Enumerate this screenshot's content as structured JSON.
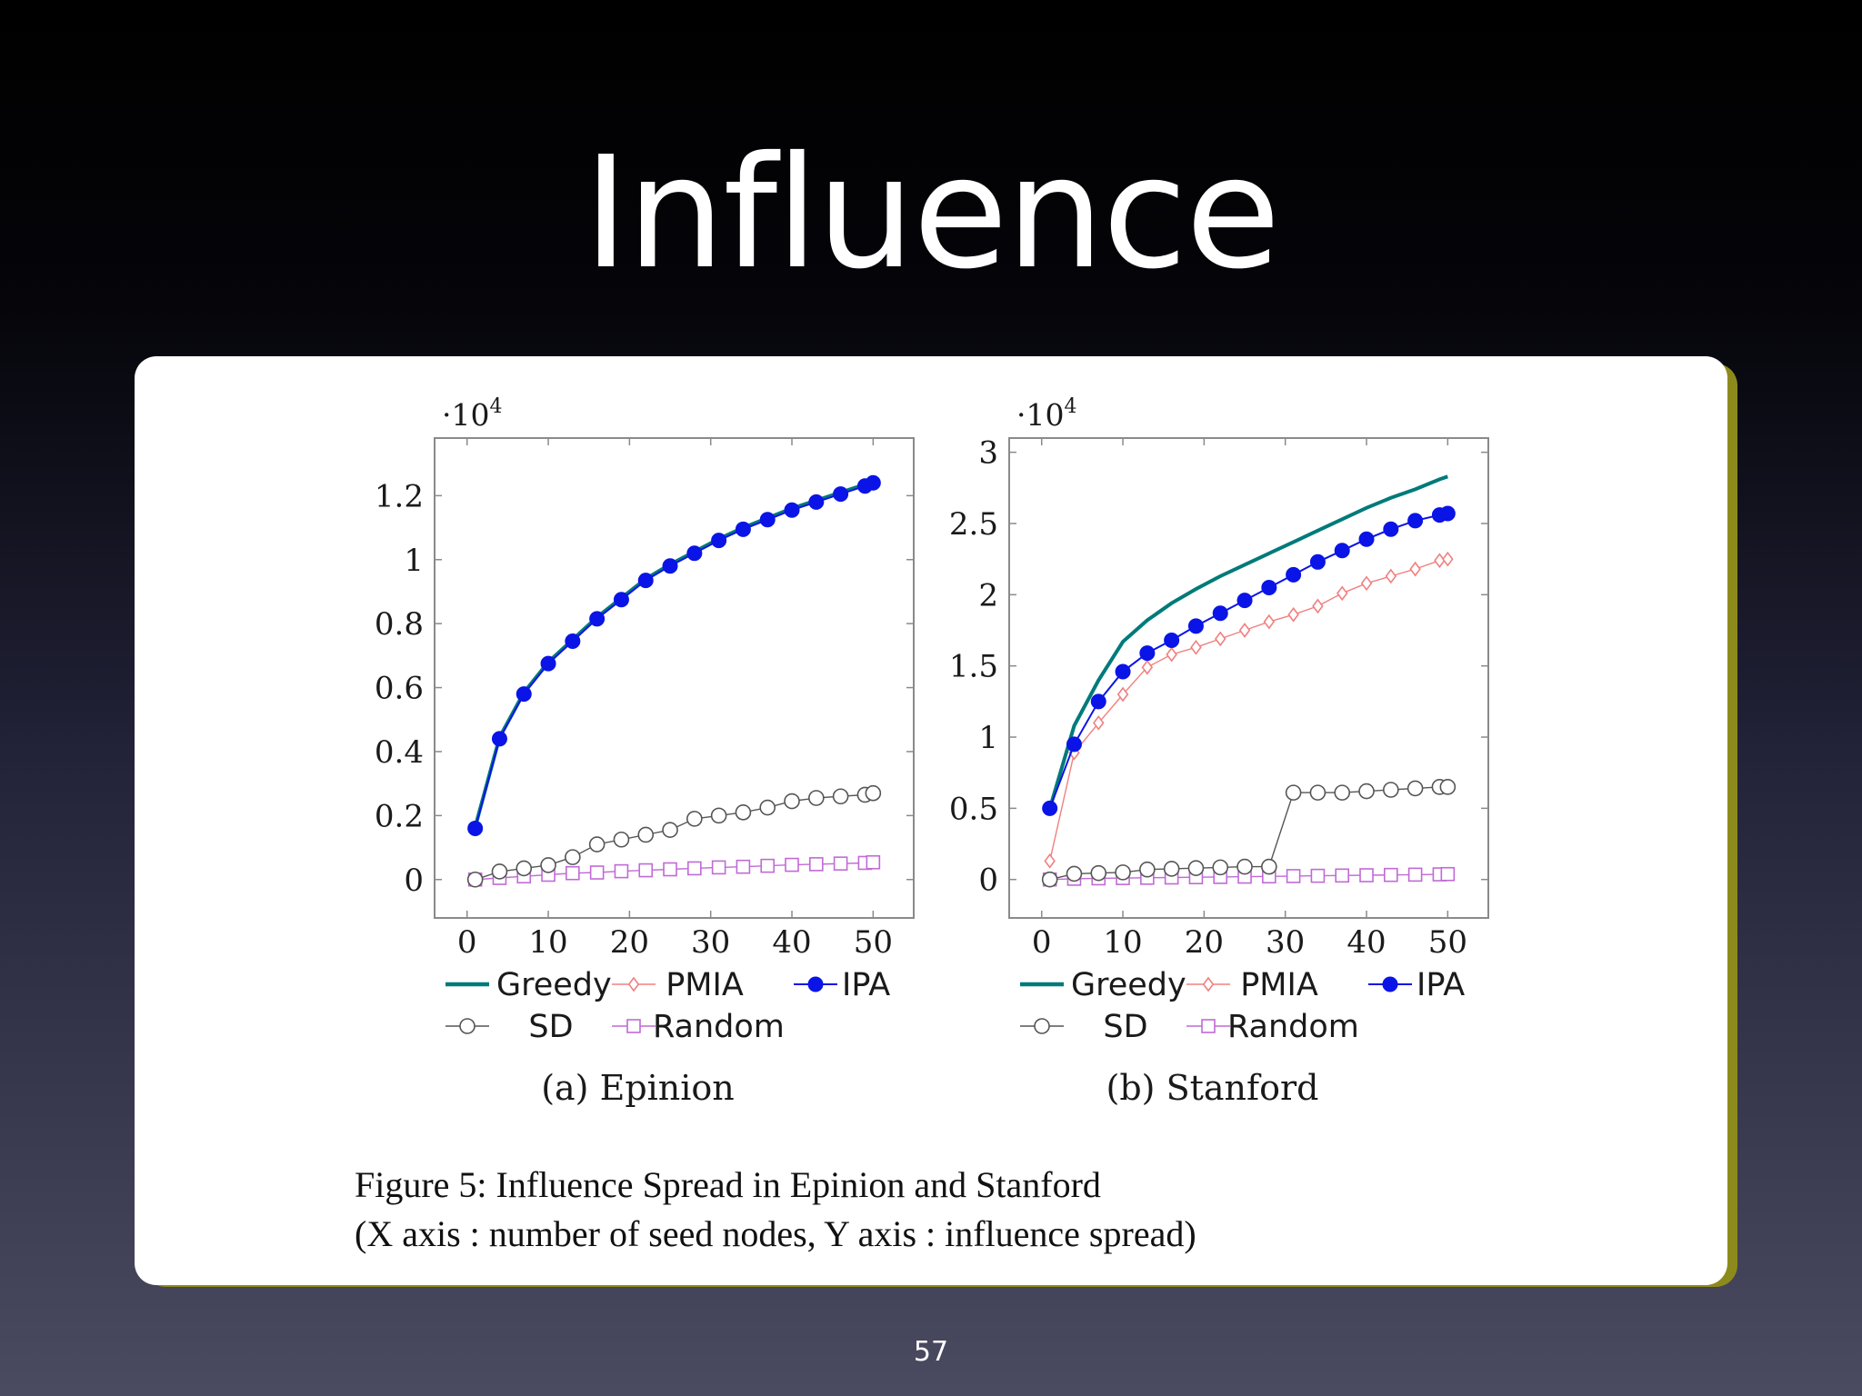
{
  "slide": {
    "title": "Influence",
    "page_number": "57",
    "caption_line1": "Figure 5: Influence Spread in Epinion and Stanford",
    "caption_line2": "(X axis : number of seed nodes, Y axis : influence spread)"
  },
  "colors": {
    "Greedy": "#007a7a",
    "PMIA": "#f08080",
    "IPA": "#0a14e6",
    "SD": "#555555",
    "Random": "#c06ad6"
  },
  "chart_data": [
    {
      "type": "line",
      "caption": "(a) Epinion",
      "multiplier": "·10",
      "multiplier_exp": "4",
      "xlim": [
        -4,
        55
      ],
      "ylim": [
        -1200,
        13800
      ],
      "xticks": [
        0,
        10,
        20,
        30,
        40,
        50
      ],
      "xtick_labels": [
        "0",
        "10",
        "20",
        "30",
        "40",
        "50"
      ],
      "yticks": [
        0,
        2000,
        4000,
        6000,
        8000,
        10000,
        12000
      ],
      "ytick_labels": [
        "0",
        "0.2",
        "0.4",
        "0.6",
        "0.8",
        "1",
        "1.2"
      ],
      "x": [
        1,
        4,
        7,
        10,
        13,
        16,
        19,
        22,
        25,
        28,
        31,
        34,
        37,
        40,
        43,
        46,
        49,
        50
      ],
      "series": [
        {
          "name": "Greedy",
          "marker": "none",
          "values": [
            1650,
            4450,
            5850,
            6800,
            7500,
            8200,
            8800,
            9400,
            9850,
            10250,
            10650,
            11000,
            11300,
            11600,
            11850,
            12100,
            12350,
            12450
          ]
        },
        {
          "name": "PMIA",
          "marker": "diamond",
          "values": [
            1600,
            4400,
            5800,
            6750,
            7450,
            8150,
            8750,
            9350,
            9800,
            10200,
            10600,
            10950,
            11250,
            11550,
            11800,
            12050,
            12300,
            12400
          ]
        },
        {
          "name": "IPA",
          "marker": "filled-circle",
          "values": [
            1600,
            4400,
            5800,
            6750,
            7450,
            8150,
            8750,
            9350,
            9800,
            10200,
            10600,
            10950,
            11250,
            11550,
            11800,
            12050,
            12300,
            12400
          ]
        },
        {
          "name": "SD",
          "marker": "open-circle",
          "values": [
            0,
            250,
            350,
            450,
            700,
            1100,
            1250,
            1400,
            1550,
            1900,
            2000,
            2100,
            2250,
            2450,
            2550,
            2600,
            2650,
            2700
          ]
        },
        {
          "name": "Random",
          "marker": "square",
          "values": [
            0,
            50,
            100,
            150,
            200,
            220,
            260,
            290,
            320,
            350,
            380,
            400,
            430,
            460,
            480,
            500,
            520,
            540
          ]
        }
      ],
      "legend": [
        "Greedy",
        "PMIA",
        "IPA",
        "SD",
        "Random"
      ]
    },
    {
      "type": "line",
      "caption": "(b) Stanford",
      "multiplier": "·10",
      "multiplier_exp": "4",
      "xlim": [
        -4,
        55
      ],
      "ylim": [
        -2700,
        31000
      ],
      "xticks": [
        0,
        10,
        20,
        30,
        40,
        50
      ],
      "xtick_labels": [
        "0",
        "10",
        "20",
        "30",
        "40",
        "50"
      ],
      "yticks": [
        0,
        5000,
        10000,
        15000,
        20000,
        25000,
        30000
      ],
      "ytick_labels": [
        "0",
        "0.5",
        "1",
        "1.5",
        "2",
        "2.5",
        "3"
      ],
      "x": [
        1,
        4,
        7,
        10,
        13,
        16,
        19,
        22,
        25,
        28,
        31,
        34,
        37,
        40,
        43,
        46,
        49,
        50
      ],
      "series": [
        {
          "name": "Greedy",
          "marker": "none",
          "values": [
            5000,
            10800,
            14000,
            16700,
            18200,
            19400,
            20400,
            21300,
            22100,
            22900,
            23700,
            24500,
            25300,
            26100,
            26800,
            27400,
            28100,
            28300
          ]
        },
        {
          "name": "PMIA",
          "marker": "diamond",
          "values": [
            1300,
            8900,
            11000,
            13000,
            14900,
            15800,
            16300,
            16900,
            17500,
            18100,
            18600,
            19200,
            20100,
            20800,
            21300,
            21800,
            22400,
            22500
          ]
        },
        {
          "name": "IPA",
          "marker": "filled-circle",
          "values": [
            5000,
            9500,
            12500,
            14600,
            15900,
            16800,
            17800,
            18700,
            19600,
            20500,
            21400,
            22300,
            23100,
            23900,
            24600,
            25200,
            25600,
            25700
          ]
        },
        {
          "name": "SD",
          "marker": "open-circle",
          "values": [
            0,
            400,
            450,
            500,
            700,
            750,
            800,
            850,
            900,
            900,
            6100,
            6100,
            6100,
            6200,
            6300,
            6400,
            6500,
            6500
          ]
        },
        {
          "name": "Random",
          "marker": "square",
          "values": [
            0,
            50,
            80,
            100,
            120,
            140,
            160,
            180,
            200,
            220,
            240,
            260,
            280,
            300,
            320,
            340,
            360,
            380
          ]
        }
      ],
      "legend": [
        "Greedy",
        "PMIA",
        "IPA",
        "SD",
        "Random"
      ]
    }
  ]
}
